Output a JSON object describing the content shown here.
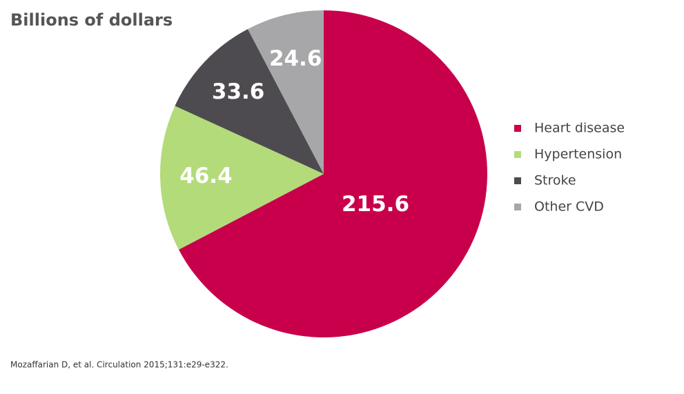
{
  "chart_data": {
    "type": "pie",
    "title": "Billions of dollars",
    "categories": [
      "Heart disease",
      "Hypertension",
      "Stroke",
      "Other CVD"
    ],
    "values": [
      215.6,
      46.4,
      33.6,
      24.6
    ],
    "colors": [
      "#c8004b",
      "#b3db7a",
      "#4d4b50",
      "#a7a7a9"
    ],
    "legend": "right",
    "source": "Mozaffarian D, et al. Circulation 2015;131:e29-e322."
  }
}
